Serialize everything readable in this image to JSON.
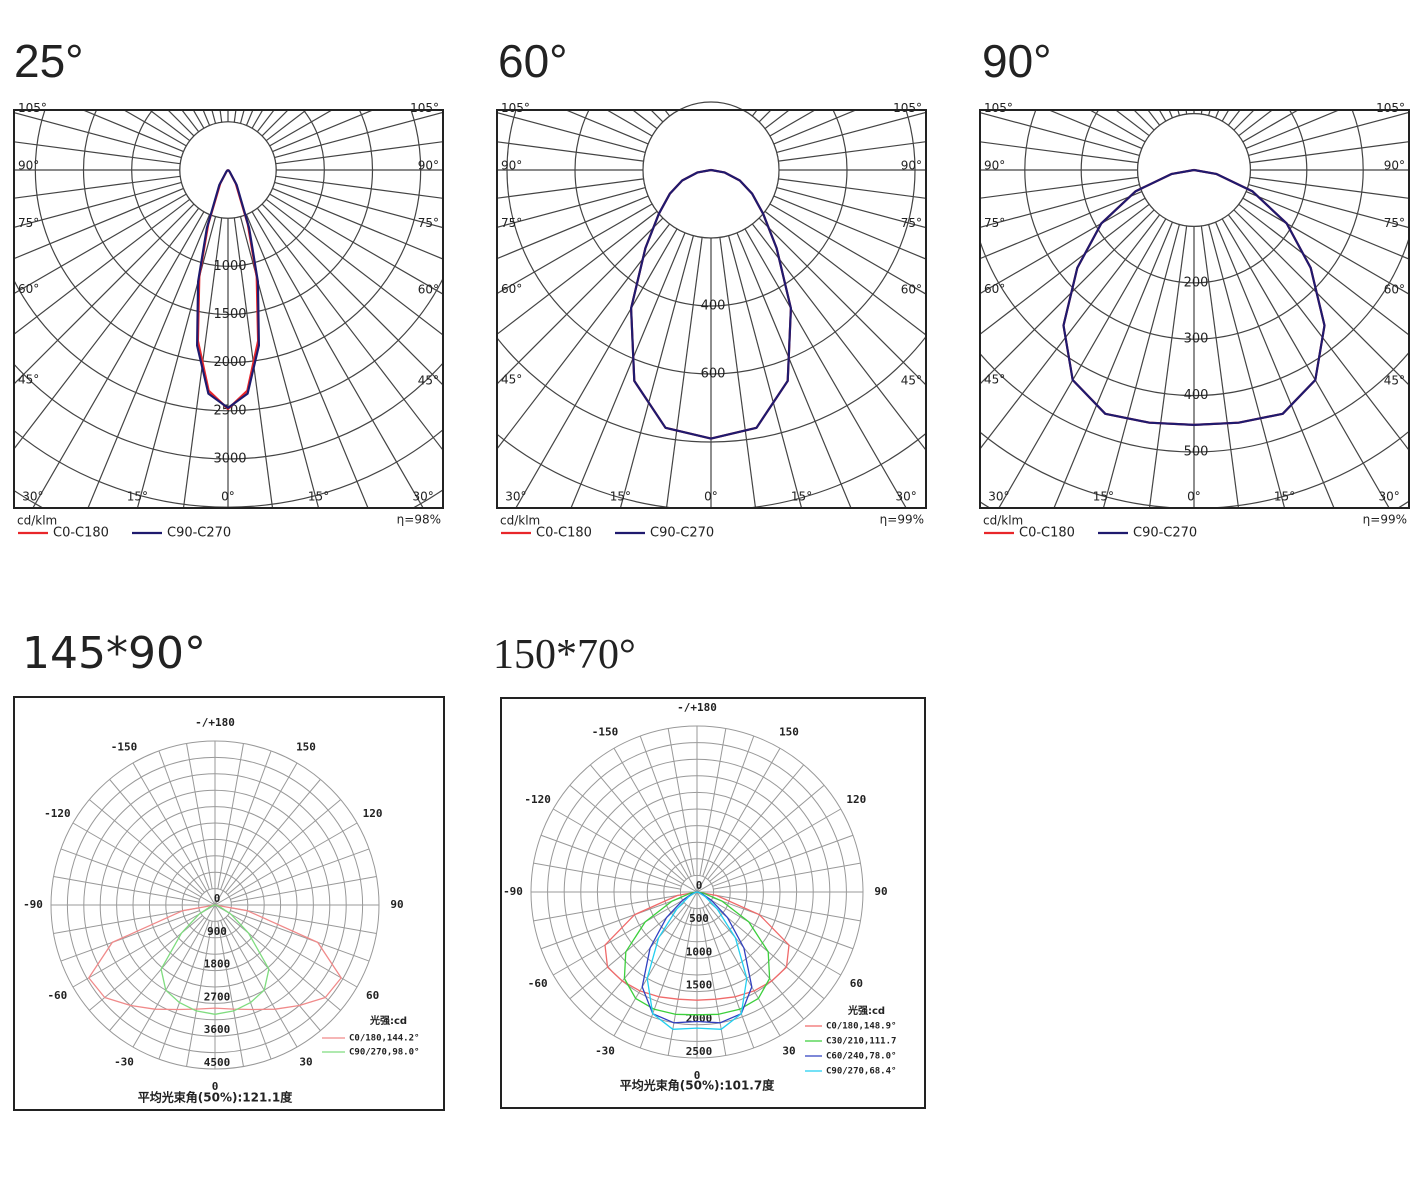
{
  "chart_data": [
    {
      "type": "polar",
      "title": "25°",
      "unit": "cd/klm",
      "efficiency": "η=98%",
      "ylim": [
        0,
        3000
      ],
      "yticks": [
        1000,
        1500,
        2000,
        2500,
        3000
      ],
      "angle_ticks": [
        {
          "value": -105,
          "label": "105°"
        },
        {
          "value": -90,
          "label": "90°"
        },
        {
          "value": -75,
          "label": "75°"
        },
        {
          "value": -60,
          "label": "60°"
        },
        {
          "value": -45,
          "label": "45°"
        },
        {
          "value": -30,
          "label": "30°"
        },
        {
          "value": -15,
          "label": "15°"
        },
        {
          "value": 0,
          "label": "0°"
        },
        {
          "value": 15,
          "label": "15°"
        },
        {
          "value": 30,
          "label": "30°"
        },
        {
          "value": 45,
          "label": "45°"
        },
        {
          "value": 60,
          "label": "60°"
        },
        {
          "value": 75,
          "label": "75°"
        },
        {
          "value": 90,
          "label": "90°"
        },
        {
          "value": 105,
          "label": "105°"
        }
      ],
      "series": [
        {
          "name": "C0-C180",
          "color": "#e8262a",
          "x": [
            -90,
            -60,
            -45,
            -30,
            -20,
            -15,
            -10,
            -5,
            0,
            5,
            10,
            15,
            20,
            30,
            45,
            60,
            90
          ],
          "values": [
            0,
            5,
            20,
            160,
            600,
            1150,
            1800,
            2300,
            2480,
            2300,
            1800,
            1150,
            600,
            160,
            20,
            5,
            0
          ]
        },
        {
          "name": "C90-C270",
          "color": "#1f1a6e",
          "x": [
            -90,
            -60,
            -45,
            -30,
            -20,
            -15,
            -10,
            -5,
            0,
            5,
            10,
            15,
            20,
            30,
            45,
            60,
            90
          ],
          "values": [
            0,
            5,
            25,
            180,
            640,
            1200,
            1850,
            2330,
            2470,
            2330,
            1850,
            1200,
            640,
            180,
            25,
            5,
            0
          ]
        }
      ]
    },
    {
      "type": "polar",
      "title": "60°",
      "unit": "cd/klm",
      "efficiency": "η=99%",
      "ylim": [
        0,
        600
      ],
      "yticks": [
        400,
        600
      ],
      "angle_ticks": [
        {
          "value": -105,
          "label": "105°"
        },
        {
          "value": -90,
          "label": "90°"
        },
        {
          "value": -75,
          "label": "75°"
        },
        {
          "value": -60,
          "label": "60°"
        },
        {
          "value": -45,
          "label": "45°"
        },
        {
          "value": -30,
          "label": "30°"
        },
        {
          "value": -15,
          "label": "15°"
        },
        {
          "value": 0,
          "label": "0°"
        },
        {
          "value": 15,
          "label": "15°"
        },
        {
          "value": 30,
          "label": "30°"
        },
        {
          "value": 45,
          "label": "45°"
        },
        {
          "value": 60,
          "label": "60°"
        },
        {
          "value": 75,
          "label": "75°"
        },
        {
          "value": 90,
          "label": "90°"
        },
        {
          "value": 105,
          "label": "105°"
        }
      ],
      "series": [
        {
          "name": "C0-C180",
          "color": "#e8262a",
          "x": [
            -90,
            -80,
            -70,
            -60,
            -50,
            -40,
            -30,
            -20,
            -10,
            0,
            10,
            20,
            30,
            40,
            50,
            60,
            70,
            80,
            90
          ],
          "values": [
            0,
            40,
            90,
            140,
            200,
            300,
            470,
            660,
            770,
            790,
            770,
            660,
            470,
            300,
            200,
            140,
            90,
            40,
            0
          ]
        },
        {
          "name": "C90-C270",
          "color": "#1f1a6e",
          "x": [
            -90,
            -80,
            -70,
            -60,
            -50,
            -40,
            -30,
            -20,
            -10,
            0,
            10,
            20,
            30,
            40,
            50,
            60,
            70,
            80,
            90
          ],
          "values": [
            0,
            40,
            90,
            140,
            200,
            300,
            470,
            660,
            770,
            790,
            770,
            660,
            470,
            300,
            200,
            140,
            90,
            40,
            0
          ]
        }
      ]
    },
    {
      "type": "polar",
      "title": "90°",
      "unit": "cd/klm",
      "efficiency": "η=99%",
      "ylim": [
        0,
        500
      ],
      "yticks": [
        200,
        300,
        400,
        500
      ],
      "angle_ticks": [
        {
          "value": -105,
          "label": "105°"
        },
        {
          "value": -90,
          "label": "90°"
        },
        {
          "value": -75,
          "label": "75°"
        },
        {
          "value": -60,
          "label": "60°"
        },
        {
          "value": -45,
          "label": "45°"
        },
        {
          "value": -30,
          "label": "30°"
        },
        {
          "value": -15,
          "label": "15°"
        },
        {
          "value": 0,
          "label": "0°"
        },
        {
          "value": 15,
          "label": "15°"
        },
        {
          "value": 30,
          "label": "30°"
        },
        {
          "value": 45,
          "label": "45°"
        },
        {
          "value": 60,
          "label": "60°"
        },
        {
          "value": 75,
          "label": "75°"
        },
        {
          "value": 90,
          "label": "90°"
        },
        {
          "value": 105,
          "label": "105°"
        }
      ],
      "series": [
        {
          "name": "C0-C180",
          "color": "#e8262a",
          "x": [
            -90,
            -80,
            -70,
            -60,
            -50,
            -40,
            -30,
            -20,
            -10,
            0,
            10,
            20,
            30,
            40,
            50,
            60,
            70,
            80,
            90
          ],
          "values": [
            0,
            40,
            110,
            190,
            270,
            360,
            430,
            460,
            455,
            452,
            455,
            460,
            430,
            360,
            270,
            190,
            110,
            40,
            0
          ]
        },
        {
          "name": "C90-C270",
          "color": "#1f1a6e",
          "x": [
            -90,
            -80,
            -70,
            -60,
            -50,
            -40,
            -30,
            -20,
            -10,
            0,
            10,
            20,
            30,
            40,
            50,
            60,
            70,
            80,
            90
          ],
          "values": [
            0,
            40,
            110,
            190,
            270,
            360,
            430,
            460,
            455,
            452,
            455,
            460,
            430,
            360,
            270,
            190,
            110,
            40,
            0
          ]
        }
      ]
    },
    {
      "type": "polar",
      "title": "145*90°",
      "legend_title": "光强:cd",
      "footer": "平均光束角(50%):121.1度",
      "ylim": [
        0,
        4500
      ],
      "yticks": [
        0,
        900,
        1800,
        2700,
        3600,
        4500
      ],
      "angle_ticks": [
        {
          "value": 180,
          "label": "-/+180"
        },
        -150,
        150,
        -120,
        120,
        -90,
        90,
        -60,
        60,
        -30,
        30,
        0
      ],
      "series": [
        {
          "name": "C0/180,144.2°",
          "color": "#f08a8a",
          "x": [
            -90,
            -80,
            -70,
            -60,
            -50,
            -40,
            -30,
            -20,
            -10,
            0,
            10,
            20,
            30,
            40,
            50,
            60,
            70,
            80,
            90
          ],
          "values": [
            0,
            900,
            3000,
            4000,
            3950,
            3600,
            3300,
            3050,
            2900,
            2830,
            2900,
            3050,
            3300,
            3600,
            3950,
            4000,
            3000,
            900,
            0
          ]
        },
        {
          "name": "C90/270,98.0°",
          "color": "#7fdc7f",
          "x": [
            -90,
            -80,
            -70,
            -60,
            -50,
            -40,
            -30,
            -20,
            -10,
            0,
            10,
            20,
            30,
            40,
            50,
            60,
            70,
            80,
            90
          ],
          "values": [
            0,
            30,
            150,
            500,
            1200,
            2300,
            2700,
            2850,
            2950,
            3000,
            2950,
            2850,
            2700,
            2300,
            1200,
            500,
            150,
            30,
            0
          ]
        }
      ]
    },
    {
      "type": "polar",
      "title": "150*70°",
      "legend_title": "光强:cd",
      "footer": "平均光束角(50%):101.7度",
      "ylim": [
        0,
        2500
      ],
      "yticks": [
        0,
        500,
        1000,
        1500,
        2000,
        2500
      ],
      "angle_ticks": [
        {
          "value": 180,
          "label": "-/+180"
        },
        -150,
        150,
        -120,
        120,
        -90,
        90,
        -60,
        60,
        -30,
        30,
        0
      ],
      "series": [
        {
          "name": "C0/180,148.9°",
          "color": "#f06a6a",
          "x": [
            -90,
            -80,
            -70,
            -60,
            -50,
            -40,
            -30,
            -20,
            -10,
            0,
            10,
            20,
            30,
            40,
            50,
            60,
            70,
            80,
            90
          ],
          "values": [
            0,
            300,
            1000,
            1600,
            1760,
            1750,
            1720,
            1680,
            1640,
            1630,
            1640,
            1680,
            1720,
            1750,
            1760,
            1600,
            1000,
            300,
            0
          ]
        },
        {
          "name": "C30/210,111.7",
          "color": "#3ccf3c",
          "x": [
            -90,
            -80,
            -70,
            -60,
            -50,
            -40,
            -30,
            -20,
            -10,
            0,
            10,
            20,
            30,
            40,
            50,
            60,
            70,
            80,
            90
          ],
          "values": [
            0,
            100,
            400,
            900,
            1400,
            1700,
            1850,
            1880,
            1870,
            1850,
            1870,
            1880,
            1850,
            1700,
            1400,
            900,
            400,
            100,
            0
          ]
        },
        {
          "name": "C60/240,78.0°",
          "color": "#3040c0",
          "x": [
            -90,
            -80,
            -70,
            -60,
            -50,
            -40,
            -30,
            -20,
            -10,
            0,
            10,
            20,
            30,
            40,
            50,
            60,
            70,
            80,
            90
          ],
          "values": [
            0,
            20,
            80,
            250,
            600,
            1100,
            1650,
            1950,
            2000,
            1950,
            2000,
            1950,
            1650,
            1100,
            600,
            250,
            80,
            20,
            0
          ]
        },
        {
          "name": "C90/270,68.4°",
          "color": "#22cff0",
          "x": [
            -90,
            -80,
            -70,
            -60,
            -50,
            -40,
            -30,
            -20,
            -10,
            0,
            10,
            20,
            30,
            40,
            50,
            60,
            70,
            80,
            90
          ],
          "values": [
            0,
            10,
            50,
            150,
            400,
            900,
            1500,
            1950,
            2100,
            2050,
            2100,
            1950,
            1500,
            900,
            400,
            150,
            50,
            10,
            0
          ]
        }
      ]
    }
  ]
}
